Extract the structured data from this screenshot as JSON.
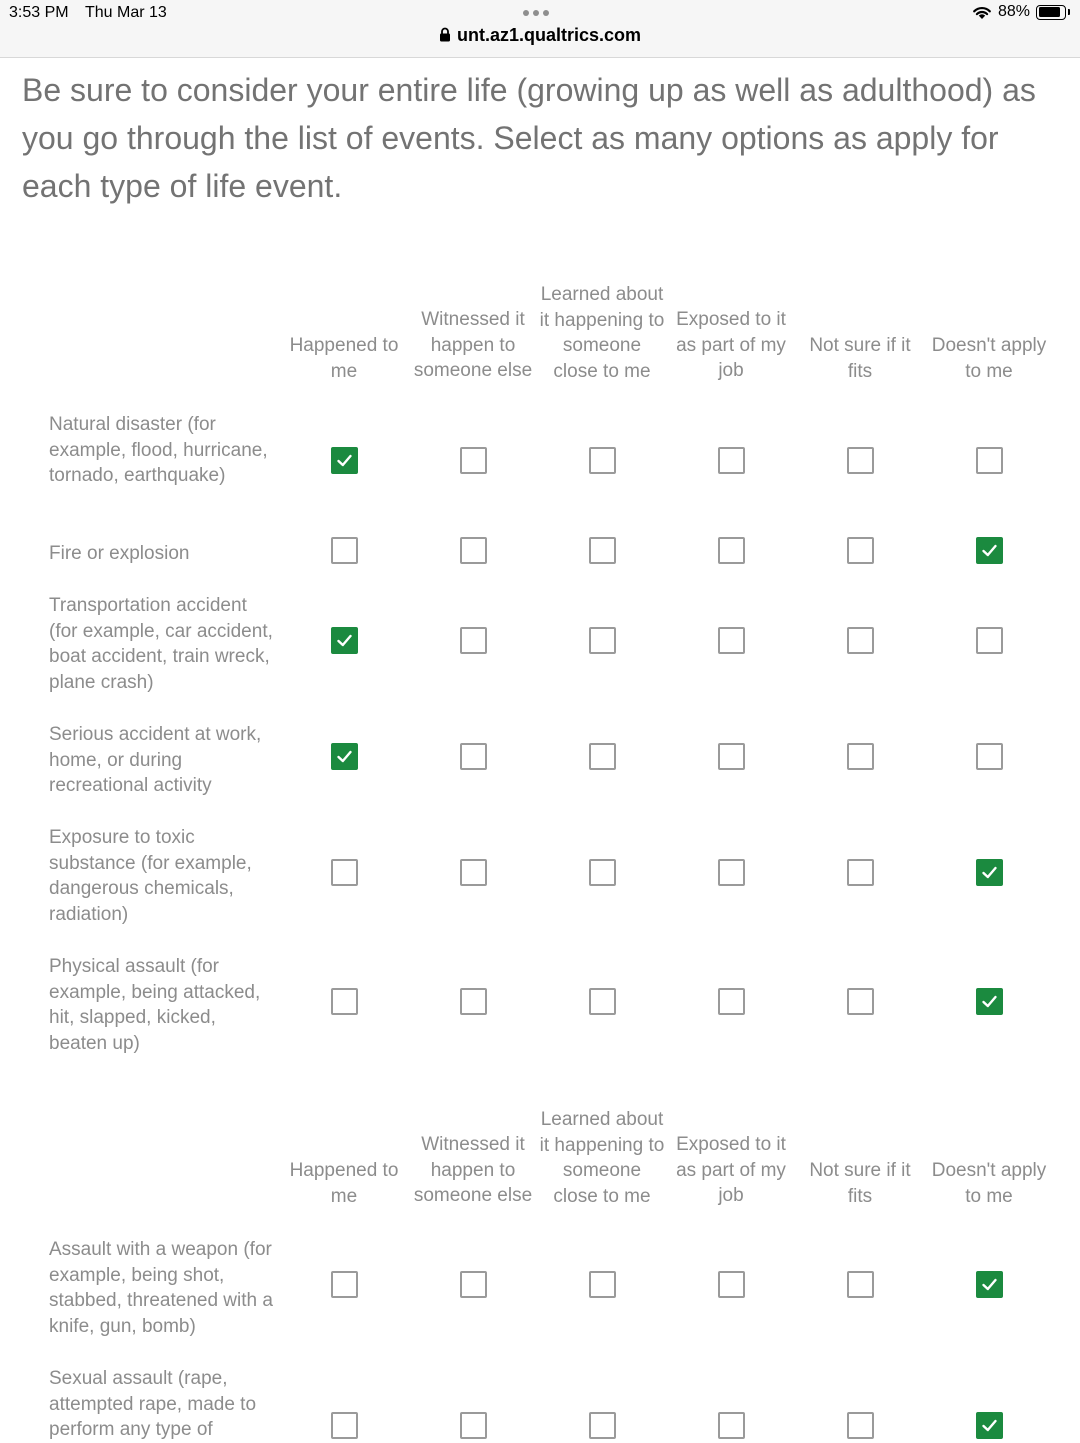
{
  "status_bar": {
    "time": "3:53 PM",
    "date": "Thu Mar 13",
    "url": "unt.az1.qualtrics.com",
    "battery": "88%",
    "battery_level": 0.88
  },
  "question": {
    "instructions": "Be sure to consider your entire life (growing up as well as adulthood) as you go through the list of events. Select as many options as apply for each type of life event."
  },
  "columns": [
    "Happened to me",
    "Witnessed it happen to someone else",
    "Learned about it happening to someone close to me",
    "Exposed to it as part of my job",
    "Not sure if it fits",
    "Doesn't apply to me"
  ],
  "rows": [
    {
      "label": "Natural disaster (for example, flood, hurricane, tornado, earthquake)",
      "checked": [
        true,
        false,
        false,
        false,
        false,
        false
      ]
    },
    {
      "label": "Fire or explosion",
      "checked": [
        false,
        false,
        false,
        false,
        false,
        true
      ]
    },
    {
      "label": "Transportation accident (for example, car accident, boat accident, train wreck, plane crash)",
      "checked": [
        true,
        false,
        false,
        false,
        false,
        false
      ]
    },
    {
      "label": "Serious accident at work, home, or during recreational activity",
      "checked": [
        true,
        false,
        false,
        false,
        false,
        false
      ]
    },
    {
      "label": "Exposure to toxic substance (for example, dangerous chemicals, radiation)",
      "checked": [
        false,
        false,
        false,
        false,
        false,
        true
      ]
    },
    {
      "label": "Physical assault (for example, being attacked, hit, slapped, kicked, beaten up)",
      "checked": [
        false,
        false,
        false,
        false,
        false,
        true
      ]
    },
    {
      "label": "Assault with a weapon (for example, being shot, stabbed, threatened with a knife, gun, bomb)",
      "checked": [
        false,
        false,
        false,
        false,
        false,
        true
      ]
    },
    {
      "label": "Sexual assault (rape, attempted rape, made to perform any type of",
      "checked": [
        false,
        false,
        false,
        false,
        false,
        true
      ]
    }
  ],
  "colors": {
    "checked": "#1b8a3f",
    "text": "#8c8c8c"
  }
}
